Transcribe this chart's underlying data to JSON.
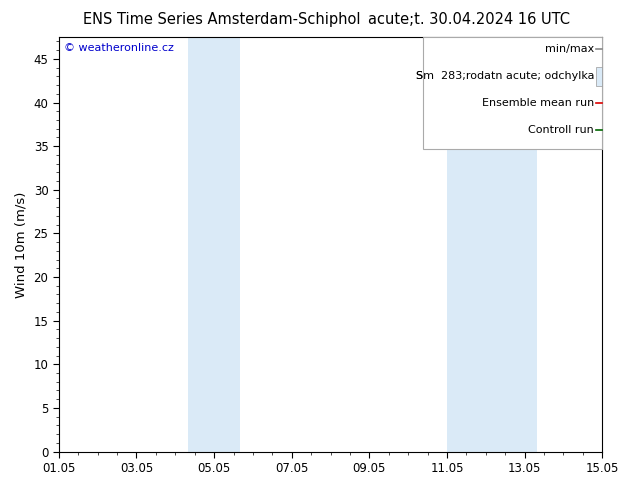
{
  "title_left": "ENS Time Series Amsterdam-Schiphol",
  "title_right": "acute;t. 30.04.2024 16 UTC",
  "ylabel": "Wind 10m (m/s)",
  "ylim": [
    0,
    47.5
  ],
  "yticks": [
    0,
    5,
    10,
    15,
    20,
    25,
    30,
    35,
    40,
    45
  ],
  "x_start": 0,
  "x_end": 14,
  "xtick_labels": [
    "01.05",
    "03.05",
    "05.05",
    "07.05",
    "09.05",
    "11.05",
    "13.05",
    "15.05"
  ],
  "xtick_positions": [
    0,
    2,
    4,
    6,
    8,
    10,
    12,
    14
  ],
  "shaded_bands": [
    {
      "x_start": 3.33,
      "x_end": 4.67,
      "color": "#daeaf7"
    },
    {
      "x_start": 10.0,
      "x_end": 12.33,
      "color": "#daeaf7"
    }
  ],
  "copyright_text": "© weatheronline.cz",
  "copyright_color": "#0000cc",
  "background_color": "#ffffff",
  "plot_bg_color": "#ffffff",
  "title_fontsize": 10.5,
  "tick_fontsize": 8.5,
  "ylabel_fontsize": 9.5,
  "legend_fontsize": 8
}
